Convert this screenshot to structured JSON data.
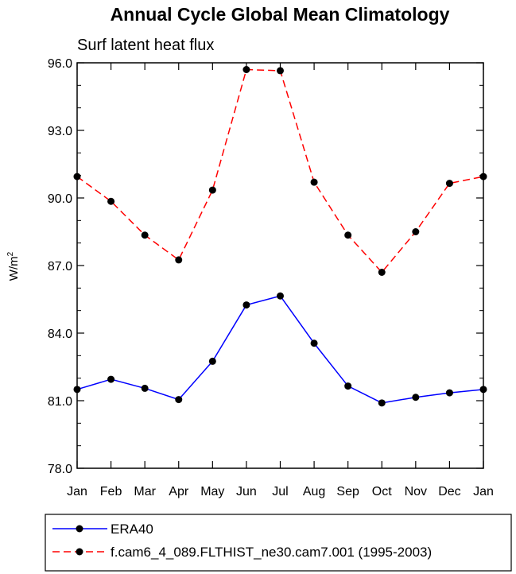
{
  "chart_data": {
    "type": "line",
    "title": "Annual Cycle Global Mean Climatology",
    "subtitle": "Surf latent heat flux",
    "xlabel": "",
    "ylabel": "W/m",
    "ylabel_superscript": "2",
    "categories": [
      "Jan",
      "Feb",
      "Mar",
      "Apr",
      "May",
      "Jun",
      "Jul",
      "Aug",
      "Sep",
      "Oct",
      "Nov",
      "Dec",
      "Jan"
    ],
    "ylim": [
      78.0,
      96.0
    ],
    "yticks": [
      "78.0",
      "81.0",
      "84.0",
      "87.0",
      "90.0",
      "93.0",
      "96.0"
    ],
    "grid": false,
    "legend_position": "bottom",
    "series": [
      {
        "name": "ERA40",
        "color": "#0000ff",
        "dash": "solid",
        "values": [
          81.5,
          81.95,
          81.55,
          81.05,
          82.75,
          85.25,
          85.65,
          83.55,
          81.65,
          80.9,
          81.15,
          81.35,
          81.5
        ]
      },
      {
        "name": "f.cam6_4_089.FLTHIST_ne30.cam7.001 (1995-2003)",
        "color": "#ff0000",
        "dash": "dashed",
        "values": [
          90.95,
          89.85,
          88.35,
          87.25,
          90.35,
          95.7,
          95.65,
          90.7,
          88.35,
          86.7,
          88.5,
          90.65,
          90.95
        ]
      }
    ]
  }
}
